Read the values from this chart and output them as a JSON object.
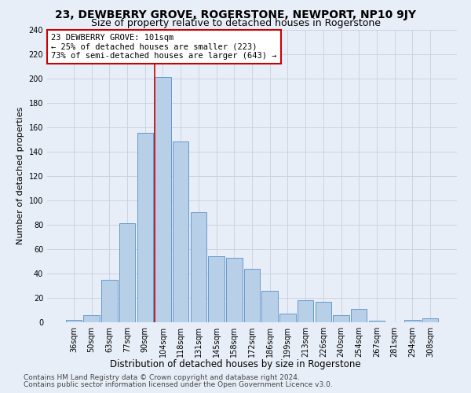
{
  "title": "23, DEWBERRY GROVE, ROGERSTONE, NEWPORT, NP10 9JY",
  "subtitle": "Size of property relative to detached houses in Rogerstone",
  "xlabel": "Distribution of detached houses by size in Rogerstone",
  "ylabel": "Number of detached properties",
  "categories": [
    "36sqm",
    "50sqm",
    "63sqm",
    "77sqm",
    "90sqm",
    "104sqm",
    "118sqm",
    "131sqm",
    "145sqm",
    "158sqm",
    "172sqm",
    "186sqm",
    "199sqm",
    "213sqm",
    "226sqm",
    "240sqm",
    "254sqm",
    "267sqm",
    "281sqm",
    "294sqm",
    "308sqm"
  ],
  "values": [
    2,
    6,
    35,
    81,
    155,
    201,
    148,
    90,
    54,
    53,
    44,
    26,
    7,
    18,
    17,
    6,
    11,
    1,
    0,
    2,
    3
  ],
  "bar_color": "#b8cfe8",
  "bar_edge_color": "#6699cc",
  "vline_index": 5,
  "vline_color": "#cc0000",
  "annotation_text": "23 DEWBERRY GROVE: 101sqm\n← 25% of detached houses are smaller (223)\n73% of semi-detached houses are larger (643) →",
  "annotation_box_facecolor": "white",
  "annotation_box_edgecolor": "#cc0000",
  "ylim": [
    0,
    240
  ],
  "yticks": [
    0,
    20,
    40,
    60,
    80,
    100,
    120,
    140,
    160,
    180,
    200,
    220,
    240
  ],
  "bg_color": "#e8eef8",
  "grid_color": "#c8d0dc",
  "title_fontsize": 10,
  "subtitle_fontsize": 9,
  "xlabel_fontsize": 8.5,
  "ylabel_fontsize": 8,
  "tick_fontsize": 7,
  "annotation_fontsize": 7.5,
  "footnote_fontsize": 6.5,
  "footnote1": "Contains HM Land Registry data © Crown copyright and database right 2024.",
  "footnote2": "Contains public sector information licensed under the Open Government Licence v3.0."
}
